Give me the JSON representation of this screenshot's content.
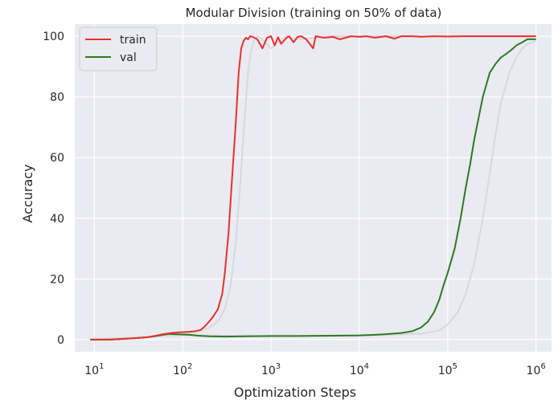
{
  "chart_data": {
    "type": "line",
    "title": "Modular Division (training on 50% of data)",
    "xlabel": "Optimization Steps",
    "ylabel": "Accuracy",
    "xscale": "log",
    "xlim": [
      6,
      1500000
    ],
    "ylim": [
      -4,
      104
    ],
    "xticks": [
      10,
      100,
      1000,
      10000,
      100000,
      1000000
    ],
    "xtick_labels": [
      {
        "base": "10",
        "exp": "1"
      },
      {
        "base": "10",
        "exp": "2"
      },
      {
        "base": "10",
        "exp": "3"
      },
      {
        "base": "10",
        "exp": "4"
      },
      {
        "base": "10",
        "exp": "5"
      },
      {
        "base": "10",
        "exp": "6"
      }
    ],
    "yticks": [
      0,
      20,
      40,
      60,
      80,
      100
    ],
    "ytick_labels": [
      "0",
      "20",
      "40",
      "60",
      "80",
      "100"
    ],
    "grid": true,
    "legend_position": "top-left",
    "series": [
      {
        "name": "train",
        "color": "#e8302a",
        "x": [
          9,
          15,
          20,
          30,
          40,
          50,
          60,
          70,
          80,
          100,
          120,
          140,
          160,
          180,
          200,
          220,
          250,
          280,
          300,
          330,
          360,
          400,
          430,
          460,
          490,
          520,
          550,
          580,
          620,
          700,
          800,
          900,
          1000,
          1100,
          1200,
          1300,
          1500,
          1600,
          1800,
          2000,
          2200,
          2500,
          3000,
          3200,
          4000,
          5000,
          6000,
          7000,
          8000,
          10000,
          12000,
          15000,
          20000,
          25000,
          30000,
          40000,
          50000,
          70000,
          100000,
          150000,
          200000,
          300000,
          500000,
          700000,
          1000000
        ],
        "y": [
          0,
          0,
          0.2,
          0.5,
          0.8,
          1.3,
          1.8,
          2.1,
          2.3,
          2.5,
          2.6,
          2.8,
          3.2,
          4.5,
          6,
          7.5,
          10,
          15,
          22,
          35,
          52,
          72,
          88,
          96,
          98.5,
          99.5,
          99,
          100,
          99.8,
          99,
          96,
          99.5,
          100,
          97,
          99.7,
          97.5,
          99.5,
          100,
          98,
          99.8,
          100,
          99,
          96,
          100,
          99.5,
          99.8,
          99,
          99.5,
          100,
          99.8,
          100,
          99.5,
          100,
          99.2,
          100,
          100,
          99.8,
          100,
          99.9,
          100,
          100,
          100,
          100,
          100,
          100
        ]
      },
      {
        "name": "val",
        "color": "#2d7a1f",
        "x": [
          9,
          15,
          20,
          30,
          40,
          50,
          60,
          70,
          80,
          100,
          120,
          150,
          200,
          300,
          500,
          1000,
          2000,
          5000,
          10000,
          15000,
          20000,
          30000,
          40000,
          50000,
          60000,
          70000,
          80000,
          90000,
          100000,
          120000,
          140000,
          160000,
          180000,
          200000,
          220000,
          250000,
          280000,
          300000,
          350000,
          400000,
          450000,
          500000,
          550000,
          600000,
          700000,
          800000,
          900000,
          1000000
        ],
        "y": [
          0,
          0,
          0.2,
          0.5,
          0.8,
          1.2,
          1.6,
          1.9,
          1.8,
          1.7,
          1.6,
          1.3,
          1.1,
          1,
          1.1,
          1.2,
          1.2,
          1.3,
          1.4,
          1.6,
          1.8,
          2.2,
          2.8,
          4,
          6,
          9,
          13,
          18,
          22,
          30,
          40,
          50,
          58,
          66,
          72,
          80,
          85,
          88,
          91,
          93,
          94,
          95,
          96,
          97,
          98,
          99,
          99,
          99
        ]
      }
    ],
    "ghost_series": [
      {
        "color": "#d7d9de",
        "x": [
          9,
          30,
          60,
          100,
          150,
          200,
          250,
          300,
          350,
          400,
          450,
          500,
          550,
          600,
          650,
          700,
          800,
          1000,
          1200,
          1500,
          2000,
          5000,
          10000,
          100000,
          1000000
        ],
        "y": [
          0,
          0.5,
          1.5,
          2,
          2.5,
          4,
          6,
          10,
          18,
          32,
          52,
          72,
          88,
          96,
          99,
          100,
          99,
          96,
          98,
          100,
          99,
          100,
          100,
          100,
          100
        ]
      },
      {
        "color": "#d7d9de",
        "x": [
          9,
          100,
          1000,
          10000,
          50000,
          80000,
          100000,
          130000,
          160000,
          200000,
          250000,
          300000,
          350000,
          400000,
          500000,
          600000,
          700000,
          800000,
          1000000
        ],
        "y": [
          0,
          1.5,
          1.1,
          1.3,
          2,
          3,
          5,
          9,
          15,
          25,
          40,
          55,
          68,
          78,
          88,
          93,
          96,
          97.5,
          98.5
        ]
      }
    ]
  }
}
